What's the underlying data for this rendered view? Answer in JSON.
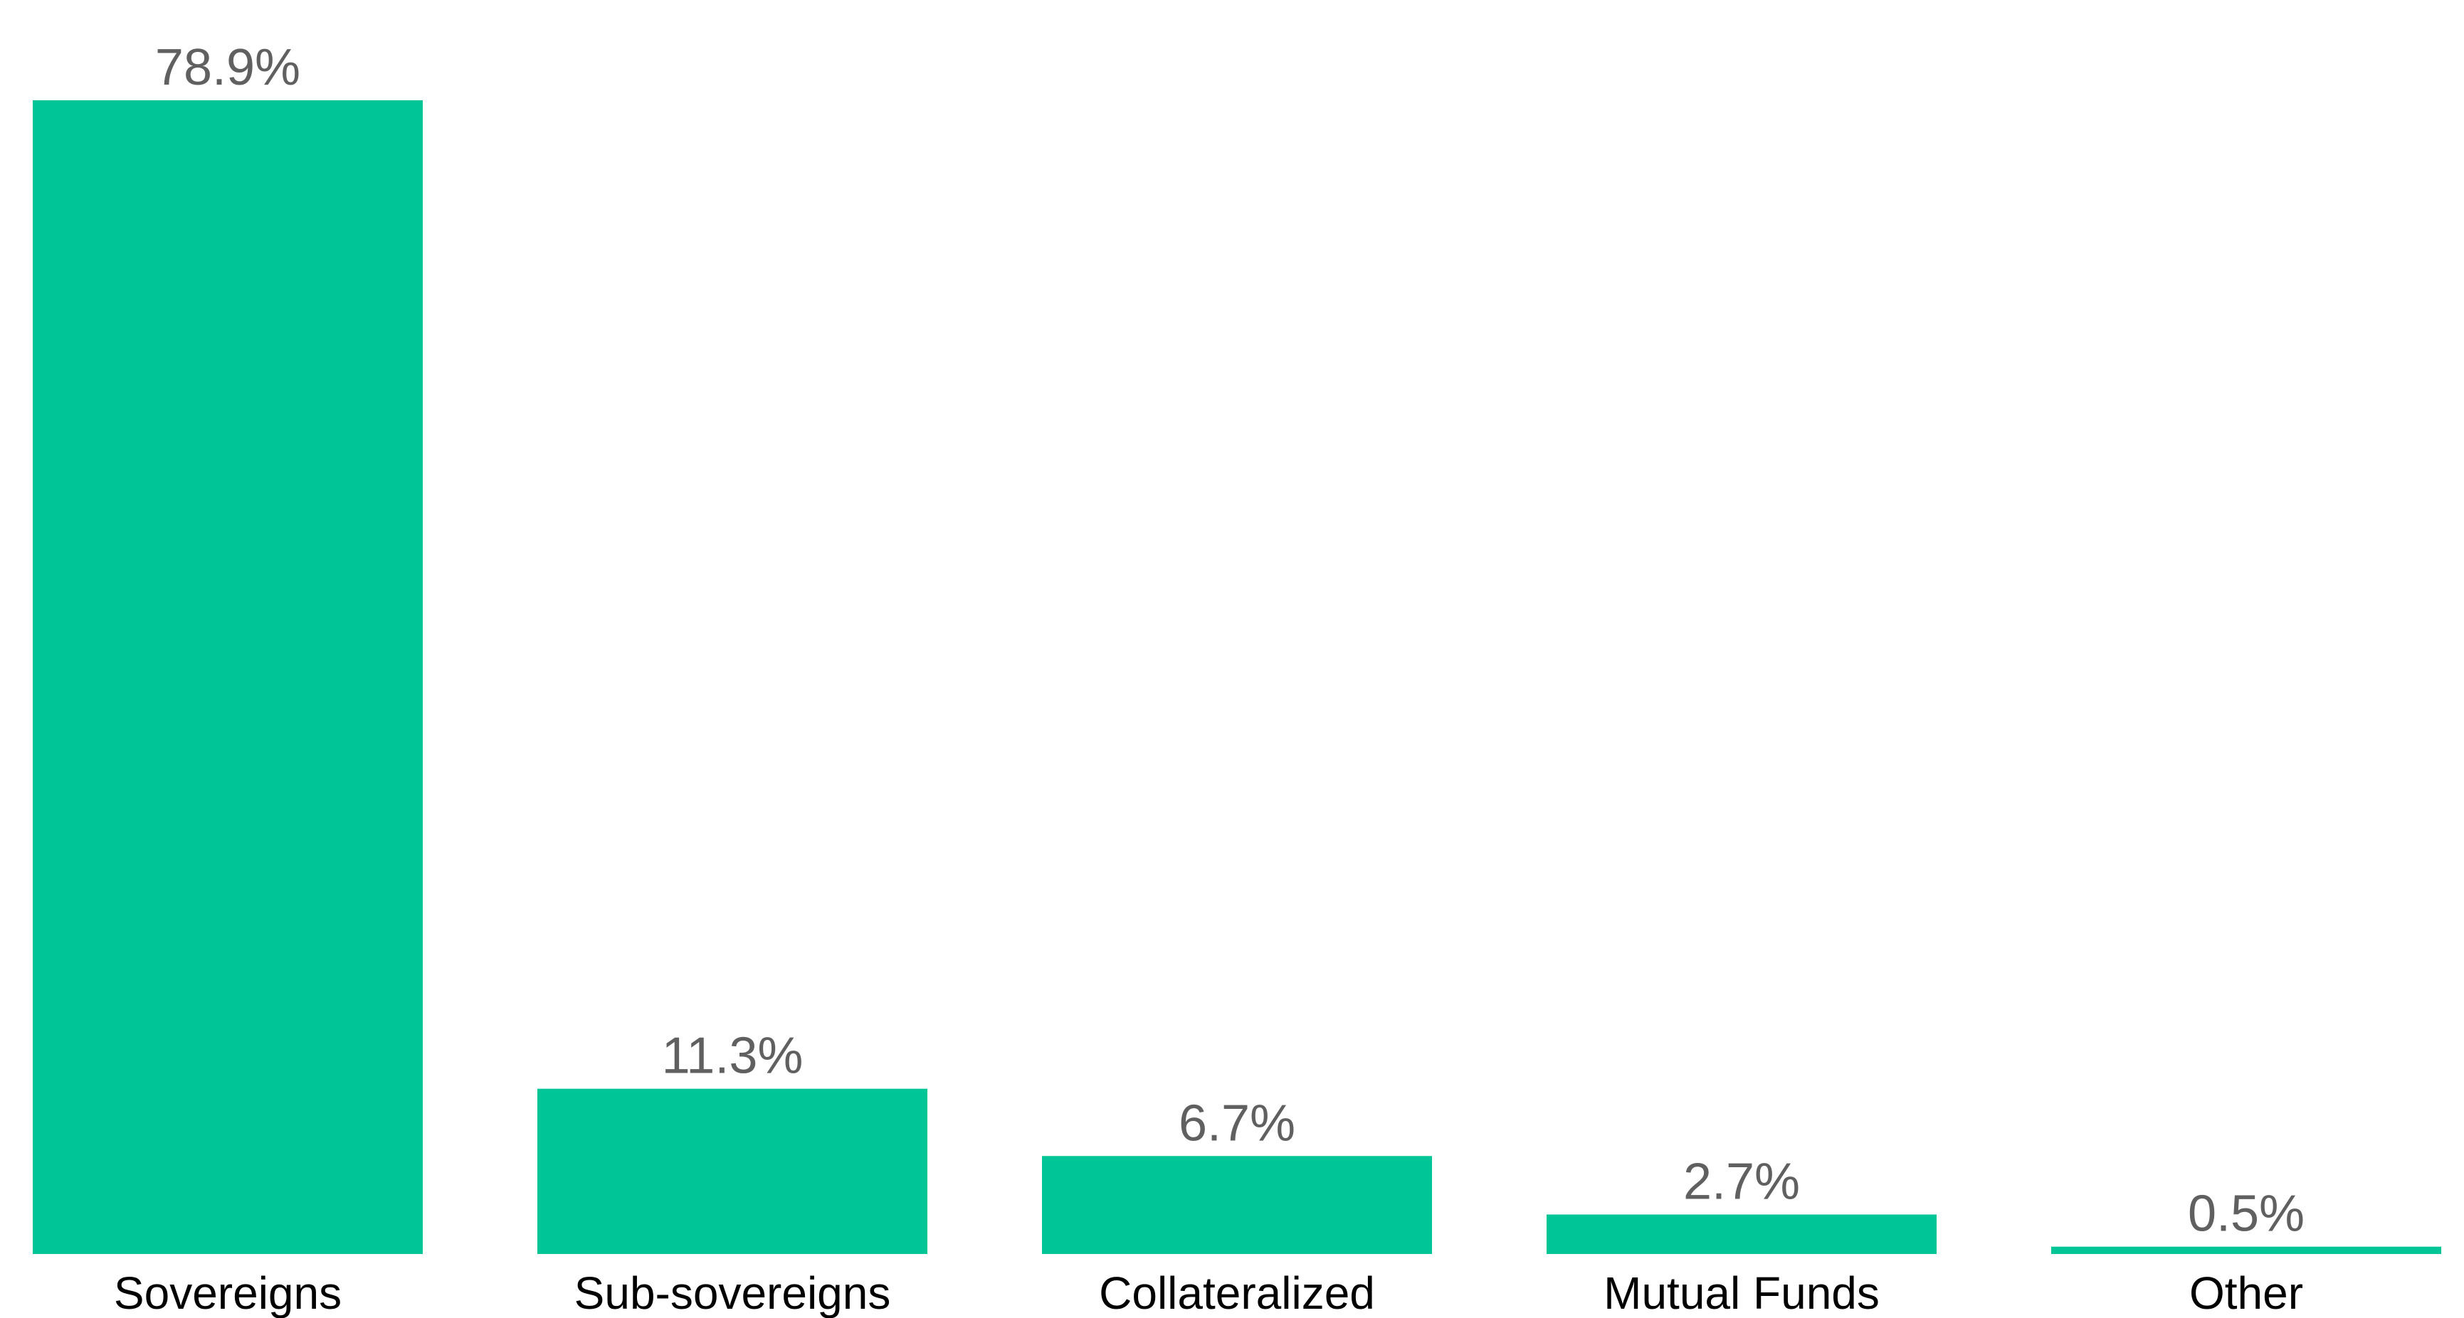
{
  "chart_data": {
    "type": "bar",
    "title": "",
    "xlabel": "",
    "ylabel": "",
    "categories": [
      "Sovereigns",
      "Sub-sovereigns",
      "Collateralized",
      "Mutual Funds",
      "Other"
    ],
    "values": [
      78.9,
      11.3,
      6.7,
      2.7,
      0.5
    ],
    "value_labels": [
      "78.9%",
      "11.3%",
      "6.7%",
      "2.7%",
      "0.5%"
    ],
    "ylim": [
      0,
      78.9
    ],
    "grid": false,
    "legend": "none",
    "bar_color": "#00C596"
  }
}
